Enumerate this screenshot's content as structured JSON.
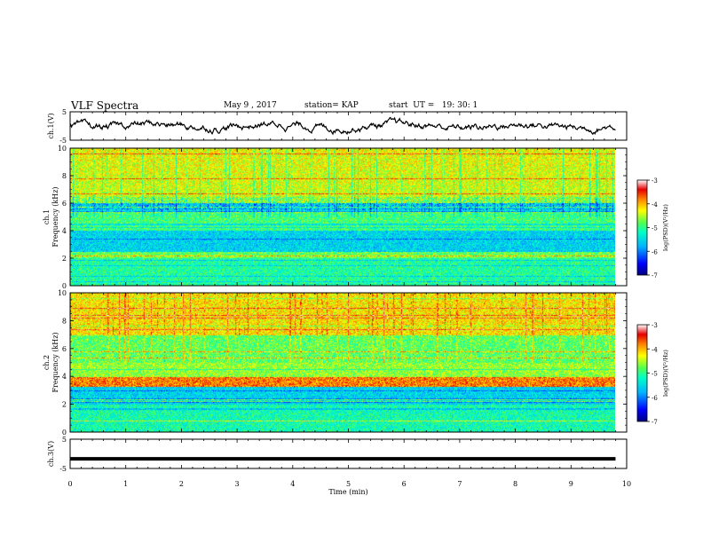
{
  "header": {
    "title": "VLF Spectra",
    "date": "May 9 , 2017",
    "station": "station= KAP",
    "start": "start  UT =   19: 30: 1"
  },
  "chart_data": [
    {
      "type": "line",
      "panel": "ch1-voltage",
      "ylabel": "ch.1(V)",
      "ylim": [
        -5,
        5
      ],
      "xlim": [
        0,
        10
      ],
      "yticks": [
        5,
        -5
      ],
      "data_end_x": 9.8,
      "series_summary": "noisy waveform fluctuating roughly between -3 V and 3 V"
    },
    {
      "type": "heatmap",
      "panel": "ch1-spectrogram",
      "ylabel": "ch.1\nFrequency (kHz)",
      "ylim": [
        0,
        10
      ],
      "yticks": [
        0,
        2,
        4,
        6,
        8,
        10
      ],
      "xlim": [
        0,
        10
      ],
      "data_end_x": 9.8,
      "colorbar": {
        "label": "log(PSD)(V²/Hz)",
        "ticks": [
          -3,
          -4,
          -5,
          -6,
          -7
        ],
        "range": [
          -7,
          -3
        ]
      }
    },
    {
      "type": "heatmap",
      "panel": "ch2-spectrogram",
      "ylabel": "ch.2\nFrequency (kHz)",
      "ylim": [
        0,
        10
      ],
      "yticks": [
        0,
        2,
        4,
        6,
        8,
        10
      ],
      "xlim": [
        0,
        10
      ],
      "data_end_x": 9.8,
      "colorbar": {
        "label": "log(PSD)(V²/Hz)",
        "ticks": [
          -3,
          -4,
          -5,
          -6,
          -7
        ],
        "range": [
          -7,
          -3
        ]
      }
    },
    {
      "type": "line",
      "panel": "ch3-voltage",
      "ylabel": "ch.3(V)",
      "ylim": [
        -5,
        5
      ],
      "yticks": [
        5,
        -5
      ],
      "xlim": [
        0,
        10
      ],
      "data_end_x": 9.8,
      "series_summary": "flat line at approximately -1.7 V"
    }
  ],
  "xaxis": {
    "label": "Time (min)",
    "ticks": [
      0,
      1,
      2,
      3,
      4,
      5,
      6,
      7,
      8,
      9,
      10
    ]
  },
  "colors": {
    "line": "#000000",
    "colormap": [
      "#000080",
      "#0000ff",
      "#00b4ff",
      "#00ffc8",
      "#50ff50",
      "#ffff00",
      "#ff8000",
      "#e60000",
      "#ffffff"
    ]
  }
}
